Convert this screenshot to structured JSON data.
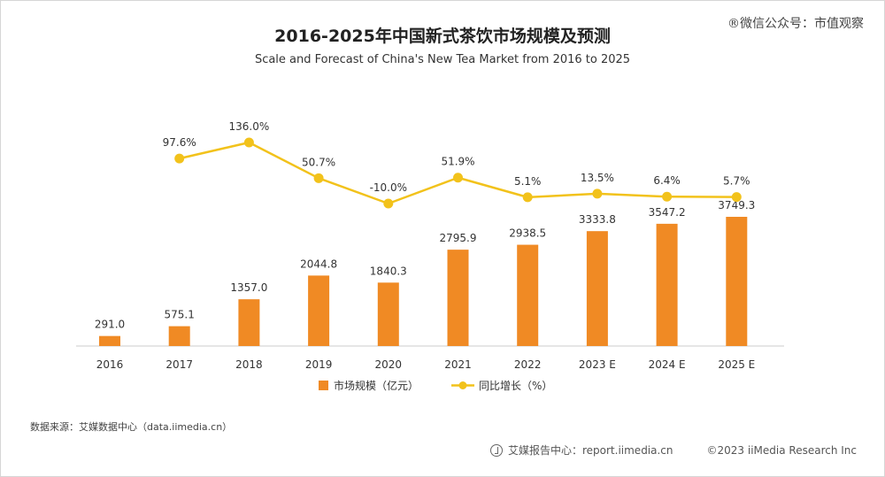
{
  "header": {
    "title": "2016-2025年中国新式茶饮市场规模及预测",
    "subtitle": "Scale and Forecast of China's New Tea Market from 2016 to 2025",
    "watermark": "®微信公众号：市值观察"
  },
  "footer": {
    "source": "数据来源：艾媒数据中心（data.iimedia.cn）",
    "report": "艾媒报告中心：report.iimedia.cn",
    "copyright": "©2023  iiMedia Research  Inc"
  },
  "colors": {
    "bar": "#F08A24",
    "line": "#F2C21B",
    "text": "#333333",
    "axis": "#cccccc"
  },
  "chart_data": {
    "type": "bar+line",
    "title": "2016-2025年中国新式茶饮市场规模及预测",
    "subtitle": "Scale and Forecast of China's New Tea Market from 2016 to 2025",
    "categories": [
      "2016",
      "2017",
      "2018",
      "2019",
      "2020",
      "2021",
      "2022",
      "2023 E",
      "2024 E",
      "2025 E"
    ],
    "series": [
      {
        "name": "市场规模（亿元）",
        "type": "bar",
        "values": [
          291.0,
          575.1,
          1357.0,
          2044.8,
          1840.3,
          2795.9,
          2938.5,
          3333.8,
          3547.2,
          3749.3
        ],
        "labels": [
          "291.0",
          "575.1",
          "1357.0",
          "2044.8",
          "1840.3",
          "2795.9",
          "2938.5",
          "3333.8",
          "3547.2",
          "3749.3"
        ]
      },
      {
        "name": "同比增长（%）",
        "type": "line",
        "values": [
          null,
          97.6,
          136.0,
          50.7,
          -10.0,
          51.9,
          5.1,
          13.5,
          6.4,
          5.7
        ],
        "labels": [
          "",
          "97.6%",
          "136.0%",
          "50.7%",
          "-10.0%",
          "51.9%",
          "5.1%",
          "13.5%",
          "6.4%",
          "5.7%"
        ]
      }
    ],
    "legend_position": "bottom",
    "grid": false
  }
}
